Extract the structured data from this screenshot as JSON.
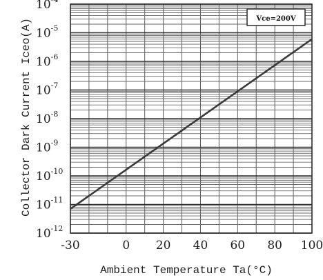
{
  "chart_data": {
    "type": "line",
    "title": "",
    "xlabel": "Ambient Temperature Ta(°C)",
    "ylabel": "Collector Dark Current Iceo(A)",
    "xlim": [
      -30,
      100
    ],
    "ylim": [
      1e-12,
      0.0001
    ],
    "y_scale": "log",
    "x_ticks": [
      -30,
      0,
      20,
      40,
      60,
      80,
      100
    ],
    "y_ticks": [
      {
        "base": "10",
        "exp": "-4"
      },
      {
        "base": "10",
        "exp": "-5"
      },
      {
        "base": "10",
        "exp": "-6"
      },
      {
        "base": "10",
        "exp": "-7"
      },
      {
        "base": "10",
        "exp": "-8"
      },
      {
        "base": "10",
        "exp": "-9"
      },
      {
        "base": "10",
        "exp": "-10"
      },
      {
        "base": "10",
        "exp": "-11"
      },
      {
        "base": "10",
        "exp": "-12"
      }
    ],
    "grid": true,
    "legend": {
      "text": "Vce=200V",
      "placement": "top-right"
    },
    "series": [
      {
        "name": "",
        "x": [
          -30,
          100
        ],
        "y": [
          7e-12,
          6e-06
        ],
        "color": "#3a3a3a"
      }
    ]
  }
}
